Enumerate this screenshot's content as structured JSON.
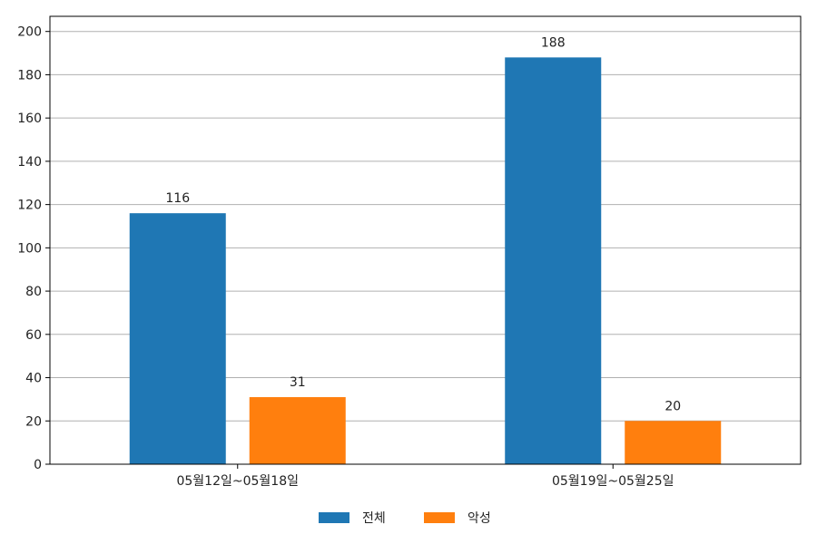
{
  "chart_data": {
    "type": "bar",
    "categories": [
      "05월12일~05월18일",
      "05월19일~05월25일"
    ],
    "series": [
      {
        "name": "전체",
        "values": [
          116,
          188
        ],
        "color": "#1f77b4"
      },
      {
        "name": "악성",
        "values": [
          31,
          20
        ],
        "color": "#ff7f0e"
      }
    ],
    "ylim": [
      0,
      207
    ],
    "yticks": [
      0,
      20,
      40,
      60,
      80,
      100,
      120,
      140,
      160,
      180,
      200
    ],
    "grid": true,
    "show_data_labels": true,
    "legend_position": "bottom-center",
    "title": "",
    "xlabel": "",
    "ylabel": ""
  }
}
